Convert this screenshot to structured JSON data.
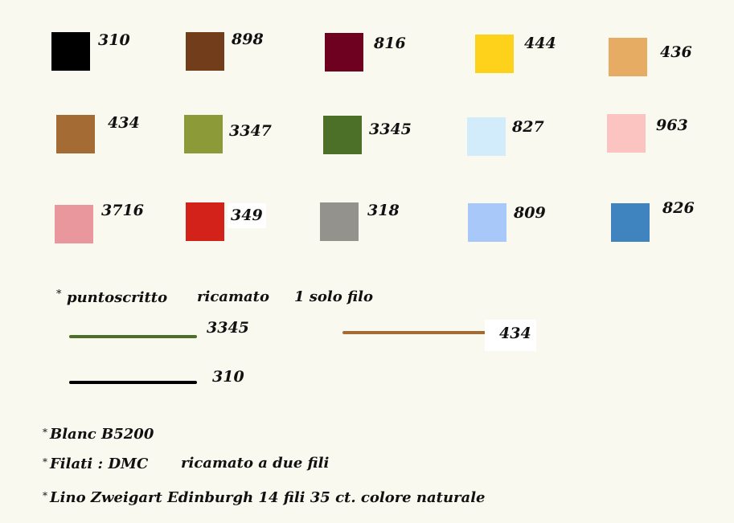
{
  "swatches": [
    {
      "code": "310",
      "color": "#000000"
    },
    {
      "code": "898",
      "color": "#713d1a"
    },
    {
      "code": "816",
      "color": "#6e0020"
    },
    {
      "code": "444",
      "color": "#fed21a"
    },
    {
      "code": "436",
      "color": "#e7ac64"
    },
    {
      "code": "434",
      "color": "#a46b35"
    },
    {
      "code": "3347",
      "color": "#8d9a38"
    },
    {
      "code": "3345",
      "color": "#4c7027"
    },
    {
      "code": "827",
      "color": "#d2ecfb"
    },
    {
      "code": "963",
      "color": "#fcc4c1"
    },
    {
      "code": "3716",
      "color": "#e9979c"
    },
    {
      "code": "349",
      "color": "#d22219"
    },
    {
      "code": "318",
      "color": "#94928c"
    },
    {
      "code": "809",
      "color": "#a8c8fa"
    },
    {
      "code": "826",
      "color": "#3f84be"
    }
  ],
  "backstitch": {
    "heading": {
      "star": "*",
      "stitch": "puntoscritto",
      "method": "ricamato",
      "threads": "1 solo filo"
    },
    "lines": [
      {
        "code": "3345",
        "color": "#4c7027"
      },
      {
        "code": "434",
        "color": "#a46b35"
      },
      {
        "code": "310",
        "color": "#000000"
      }
    ]
  },
  "notes": [
    {
      "star": "*",
      "text": "Blanc B5200"
    },
    {
      "star": "*",
      "text": "Filati : DMC",
      "extra": "ricamato a due fili"
    },
    {
      "star": "*",
      "text": "Lino Zweigart  Edinburgh  14 fili 35 ct. colore  naturale"
    }
  ]
}
